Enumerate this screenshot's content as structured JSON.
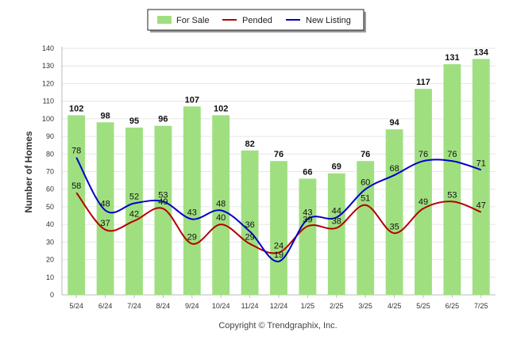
{
  "chart_data": {
    "type": "bar",
    "categories": [
      "5/24",
      "6/24",
      "7/24",
      "8/24",
      "9/24",
      "10/24",
      "11/24",
      "12/24",
      "1/25",
      "2/25",
      "3/25",
      "4/25",
      "5/25",
      "6/25",
      "7/25"
    ],
    "series": [
      {
        "name": "For Sale",
        "type": "bar",
        "color": "#a0df80",
        "values": [
          102,
          98,
          95,
          96,
          107,
          102,
          82,
          76,
          66,
          69,
          76,
          94,
          117,
          131,
          134
        ]
      },
      {
        "name": "Pended",
        "type": "line",
        "color": "#b30000",
        "values": [
          58,
          37,
          42,
          49,
          29,
          40,
          29,
          24,
          39,
          38,
          51,
          35,
          49,
          53,
          47
        ]
      },
      {
        "name": "New Listing",
        "type": "line",
        "color": "#0000cc",
        "values": [
          78,
          48,
          52,
          53,
          43,
          48,
          36,
          19,
          43,
          44,
          60,
          68,
          76,
          76,
          71
        ]
      }
    ],
    "ylabel": "Number of Homes",
    "xlabel": "",
    "ylim": [
      0,
      140
    ],
    "yticks": [
      0,
      10,
      20,
      30,
      40,
      50,
      60,
      70,
      80,
      90,
      100,
      110,
      120,
      130,
      140
    ],
    "grid": true,
    "legend": "top-center"
  },
  "footer": {
    "copyright": "Copyright © Trendgraphix, Inc."
  }
}
